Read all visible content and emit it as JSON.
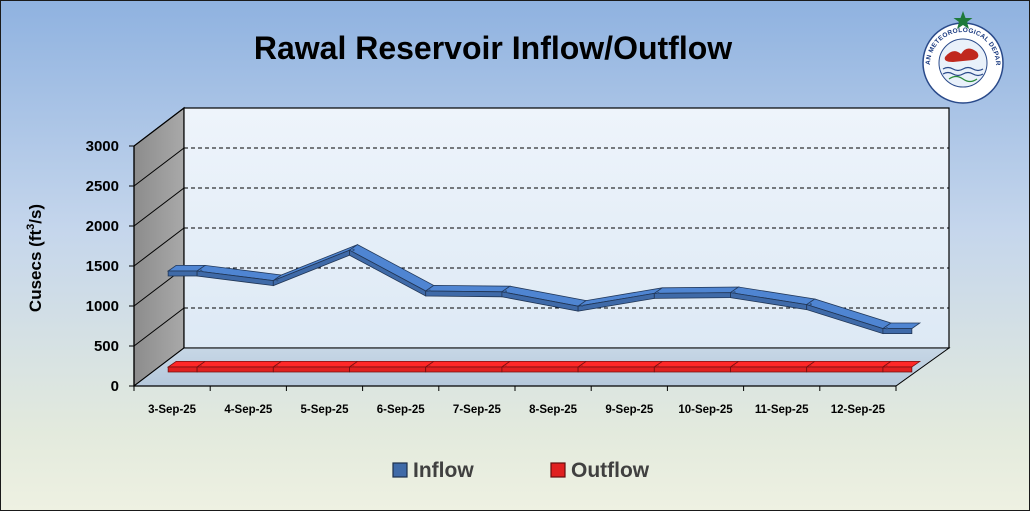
{
  "chart_data": {
    "type": "line",
    "title": "Rawal Reservoir Inflow/Outflow",
    "ylabel_prefix": "Cusecs (ft",
    "ylabel_sup": "3",
    "ylabel_suffix": "/s)",
    "ylim": [
      0,
      3000
    ],
    "yticks": [
      "0",
      "500",
      "1000",
      "1500",
      "2000",
      "2500",
      "3000"
    ],
    "grid": true,
    "legend_position": "bottom",
    "categories": [
      "3-Sep-25",
      "4-Sep-25",
      "5-Sep-25",
      "6-Sep-25",
      "7-Sep-25",
      "8-Sep-25",
      "9-Sep-25",
      "10-Sep-25",
      "11-Sep-25",
      "12-Sep-25"
    ],
    "series": [
      {
        "name": "Inflow",
        "color": "#3f6aa8",
        "values": [
          1200,
          1080,
          1460,
          950,
          940,
          760,
          920,
          930,
          780,
          480
        ]
      },
      {
        "name": "Outflow",
        "color": "#e02020",
        "values": [
          0,
          0,
          0,
          0,
          0,
          0,
          0,
          0,
          0,
          0
        ]
      }
    ]
  },
  "logo": {
    "text_en": "PAKISTAN METEOROLOGICAL DEPARTMENT",
    "icon": "pmd-logo-icon"
  }
}
